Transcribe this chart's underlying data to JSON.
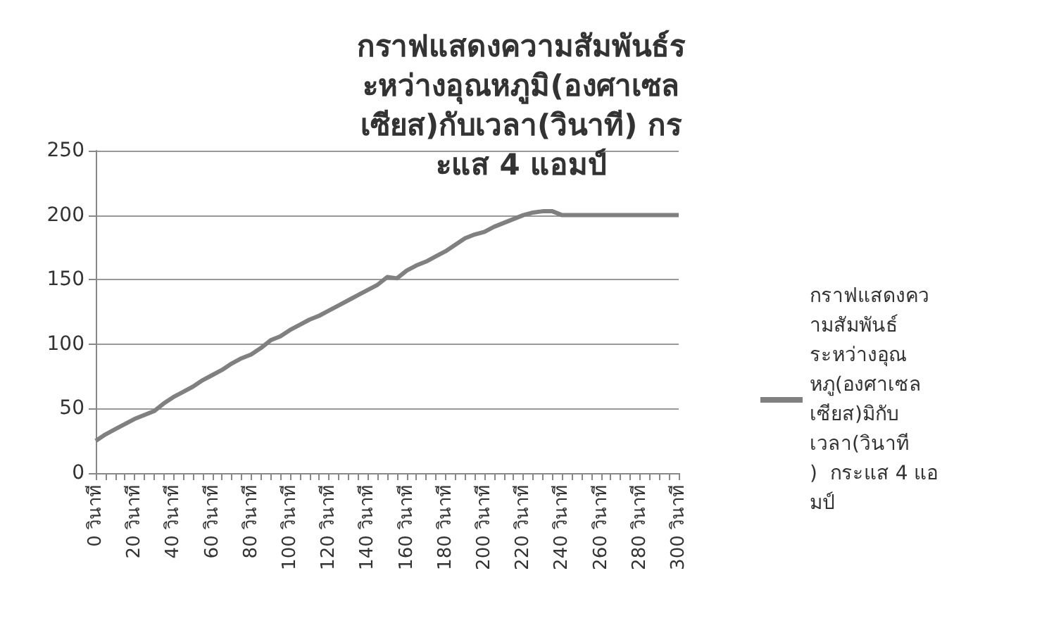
{
  "chart_data": {
    "type": "line",
    "title": "กราฟแสดงความสัมพันธ์ระหว่างอุณหภูมิ(องศาเซลเซียส)กับเวลา(วินาที) กระแส 4 แอมป์",
    "categories": [
      "0 วินาที",
      null,
      null,
      null,
      "20 วินาที",
      null,
      null,
      null,
      "40 วินาที",
      null,
      null,
      null,
      "60 วินาที",
      null,
      null,
      null,
      "80 วินาที",
      null,
      null,
      null,
      "100 วินาที",
      null,
      null,
      null,
      "120 วินาที",
      null,
      null,
      null,
      "140 วินาที",
      null,
      null,
      null,
      "160 วินาที",
      null,
      null,
      null,
      "180 วินาที",
      null,
      null,
      null,
      "200 วินาที",
      null,
      null,
      null,
      "220 วินาที",
      null,
      null,
      null,
      "240 วินาที",
      null,
      null,
      null,
      "260 วินาที",
      null,
      null,
      null,
      "280 วินาที",
      null,
      null,
      null,
      "300 วินาที"
    ],
    "series": [
      {
        "name": "กราฟแสดงความสัมพันธ์ระหว่างอุณหภู(องศาเซลเซียส)มิกับเวลา(วินาที)  กระแส 4 แอมป์",
        "color": "#808080",
        "values": [
          25,
          30,
          34,
          38,
          42,
          45,
          48,
          54,
          59,
          63,
          67,
          72,
          76,
          80,
          85,
          89,
          92,
          97,
          103,
          106,
          111,
          115,
          119,
          122,
          126,
          130,
          134,
          138,
          142,
          146,
          152,
          151,
          157,
          161,
          164,
          168,
          172,
          177,
          182,
          185,
          187,
          191,
          194,
          197,
          200,
          202,
          203,
          203,
          200,
          200,
          200,
          200,
          200,
          200,
          200,
          200,
          200,
          200,
          200,
          200,
          200
        ]
      }
    ],
    "ylim": [
      0,
      250
    ],
    "yticks": [
      0,
      50,
      100,
      150,
      200,
      250
    ],
    "grid": "y",
    "legend": "right",
    "marker": "none",
    "line_style": "solid"
  }
}
